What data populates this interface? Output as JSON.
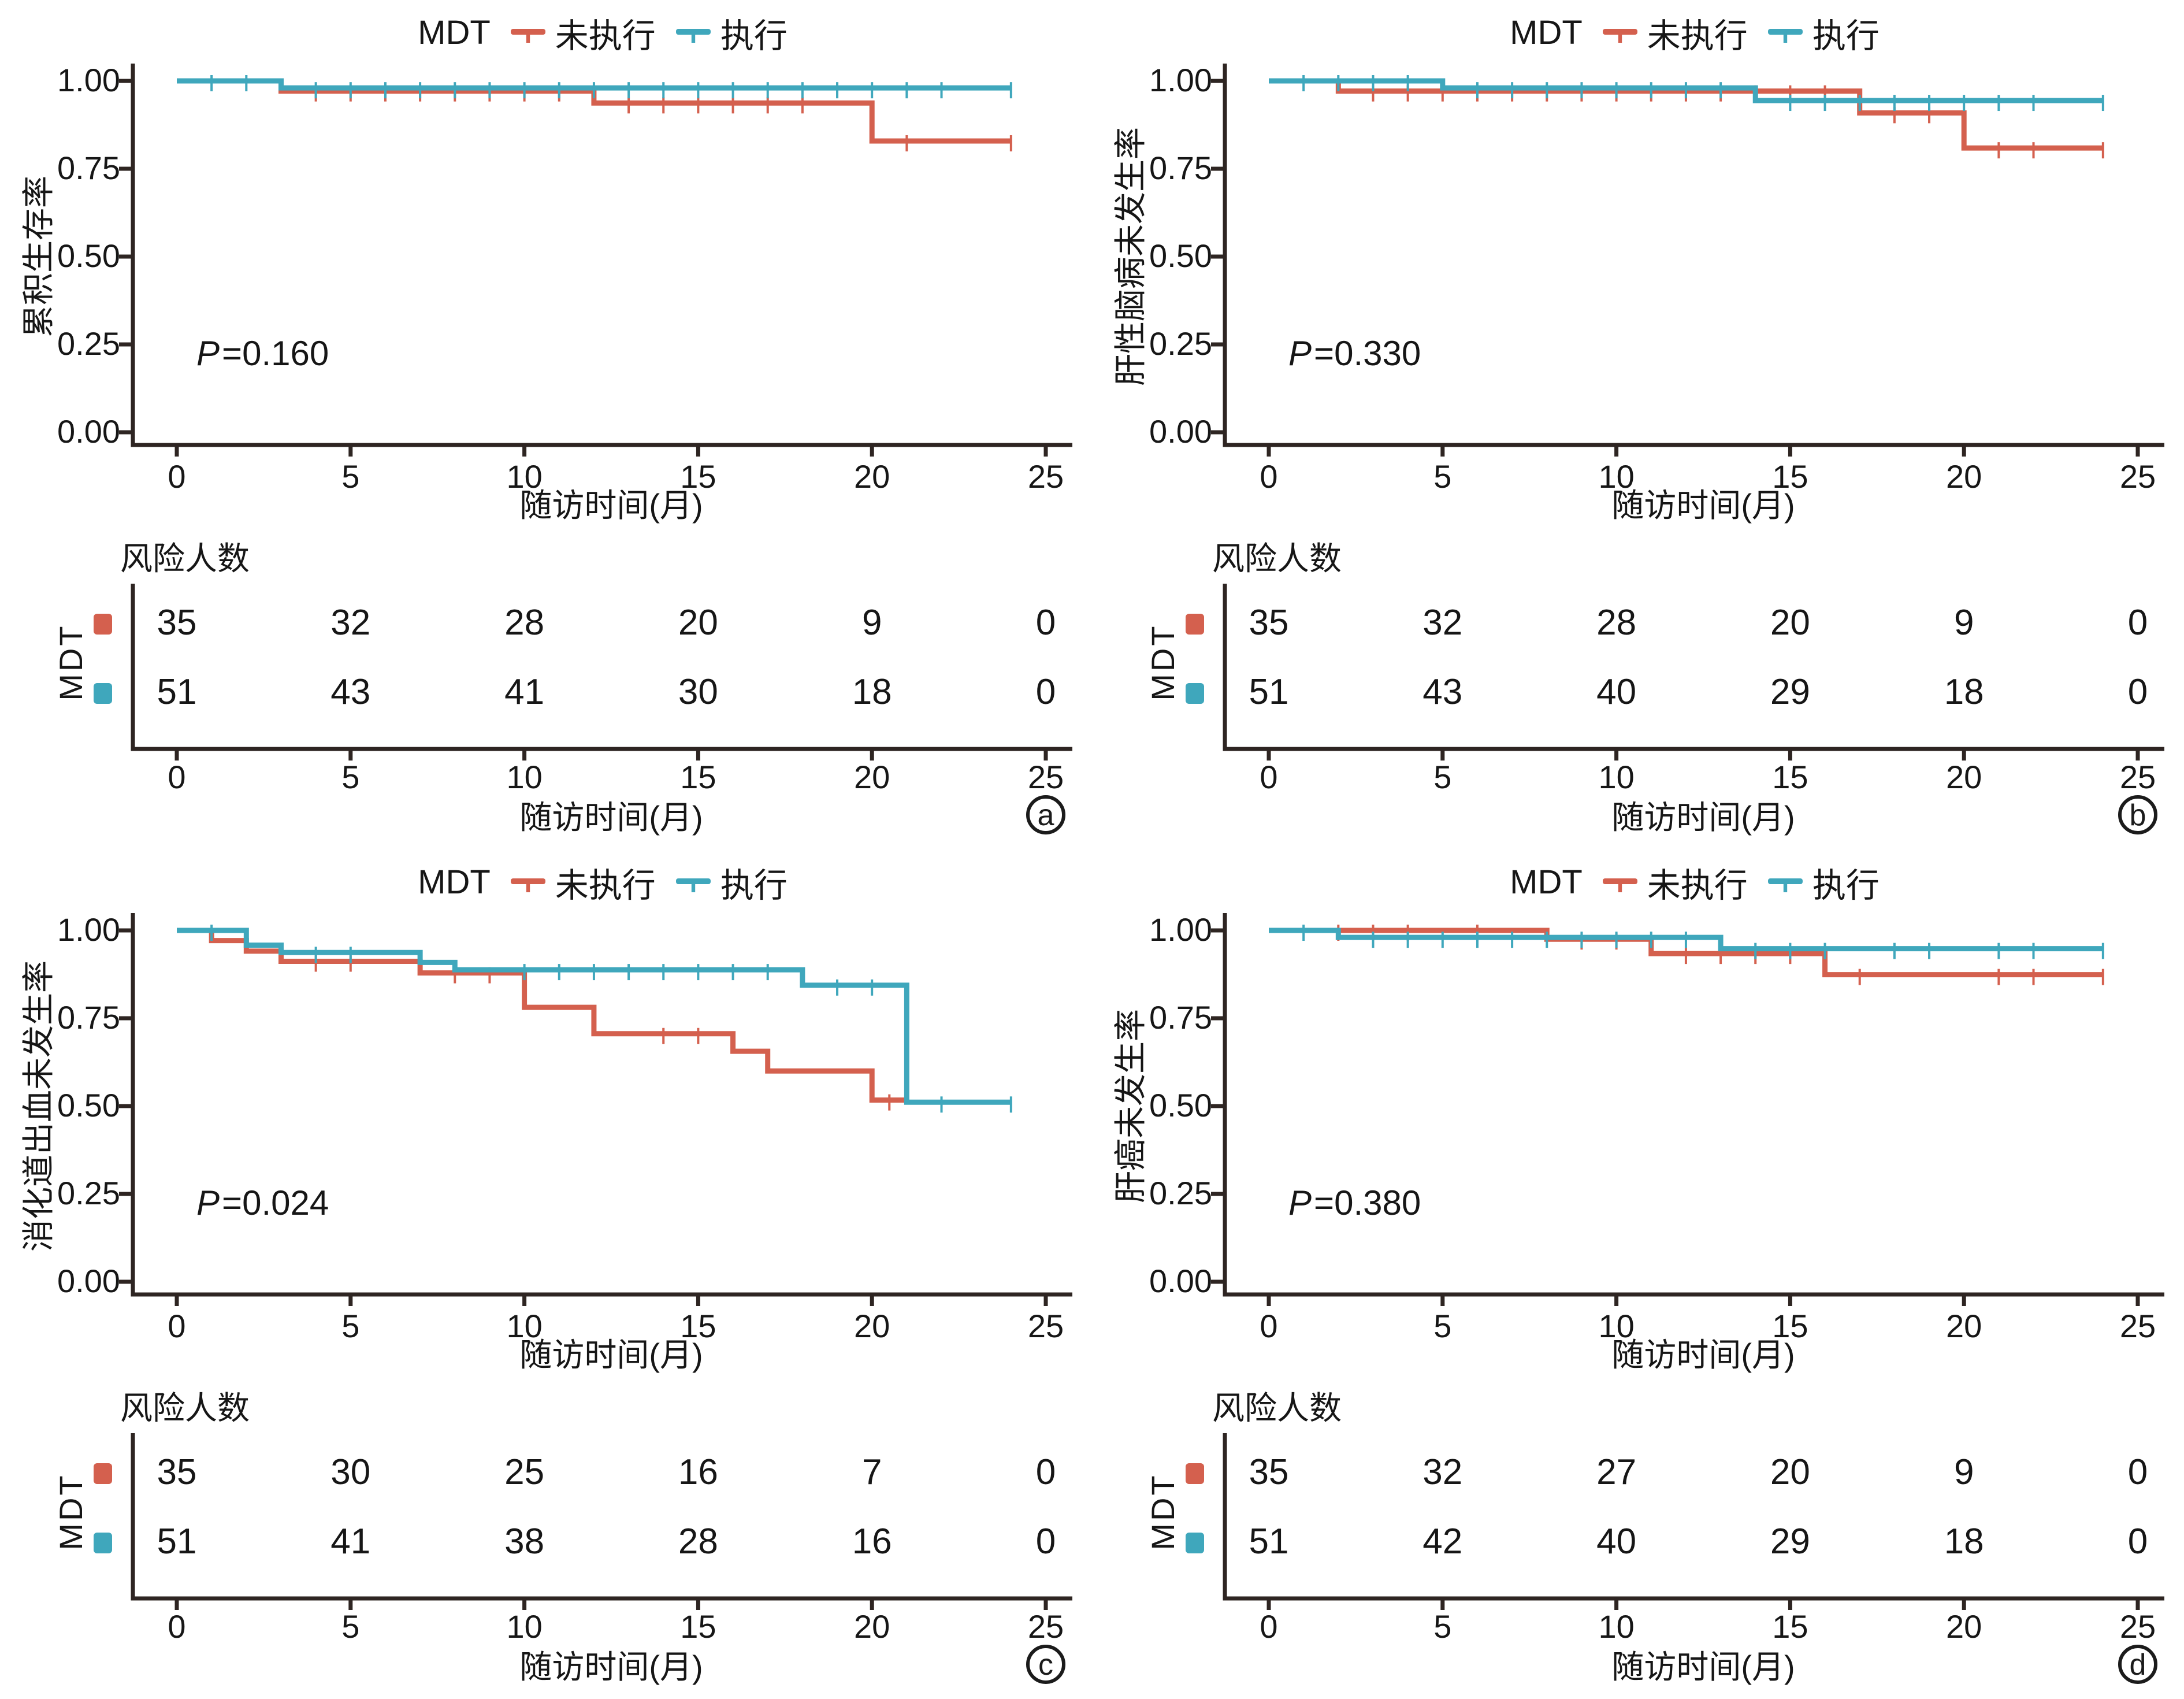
{
  "figure": {
    "legend": {
      "title": "MDT",
      "series": [
        {
          "label": "未执行",
          "color": "#d4604e"
        },
        {
          "label": "执行",
          "color": "#3fa7bc"
        }
      ]
    },
    "x_axis_title": "随访时间(月)",
    "x_tick_labels": [
      "0",
      "5",
      "10",
      "15",
      "20",
      "25"
    ],
    "y_tick_labels": [
      "1.00",
      "0.75",
      "0.50",
      "0.25",
      "0.00"
    ],
    "risk_table_header": "风险人数",
    "risk_group_label": "MDT",
    "colors": {
      "not_performed": "#d4604e",
      "performed": "#3fa7bc",
      "axis": "#2e2522",
      "text": "#161616"
    }
  },
  "chart_data": [
    {
      "id": "a",
      "type": "line",
      "subtype": "kaplan-meier-step",
      "caption": "a",
      "ylabel": "累积生存率",
      "xlabel": "随访时间(月)",
      "p_italic": "P",
      "p_text": "=0.160",
      "xlim": [
        0,
        25
      ],
      "ylim": [
        0,
        1
      ],
      "x_ticks": [
        0,
        5,
        10,
        15,
        20,
        25
      ],
      "y_ticks": [
        1.0,
        0.75,
        0.5,
        0.25,
        0.0
      ],
      "series": [
        {
          "name": "未执行",
          "color": "#d4604e",
          "steps": [
            [
              0,
              1.0
            ],
            [
              3,
              0.971
            ],
            [
              12,
              0.937
            ],
            [
              20,
              0.829
            ],
            [
              24,
              0.829
            ]
          ],
          "censors": [
            [
              4,
              0.971
            ],
            [
              5,
              0.971
            ],
            [
              6,
              0.971
            ],
            [
              7,
              0.971
            ],
            [
              8,
              0.971
            ],
            [
              9,
              0.971
            ],
            [
              10,
              0.971
            ],
            [
              11,
              0.971
            ],
            [
              13,
              0.937
            ],
            [
              14,
              0.937
            ],
            [
              15,
              0.937
            ],
            [
              16,
              0.937
            ],
            [
              17,
              0.937
            ],
            [
              18,
              0.937
            ],
            [
              21,
              0.829
            ],
            [
              24,
              0.829
            ]
          ]
        },
        {
          "name": "执行",
          "color": "#3fa7bc",
          "steps": [
            [
              0,
              1.0
            ],
            [
              3,
              0.98
            ],
            [
              24,
              0.98
            ]
          ],
          "censors": [
            [
              1,
              1.0
            ],
            [
              2,
              1.0
            ],
            [
              4,
              0.98
            ],
            [
              5,
              0.98
            ],
            [
              6,
              0.98
            ],
            [
              7,
              0.98
            ],
            [
              8,
              0.98
            ],
            [
              9,
              0.98
            ],
            [
              10,
              0.98
            ],
            [
              11,
              0.98
            ],
            [
              12,
              0.98
            ],
            [
              13,
              0.98
            ],
            [
              14,
              0.98
            ],
            [
              15,
              0.98
            ],
            [
              16,
              0.98
            ],
            [
              17,
              0.98
            ],
            [
              18,
              0.98
            ],
            [
              19,
              0.98
            ],
            [
              20,
              0.98
            ],
            [
              21,
              0.98
            ],
            [
              22,
              0.98
            ],
            [
              24,
              0.98
            ]
          ]
        }
      ],
      "risk_table": {
        "header": "风险人数",
        "group": "MDT",
        "x": [
          0,
          5,
          10,
          15,
          20,
          25
        ],
        "rows": [
          {
            "name": "未执行",
            "color": "#d4604e",
            "counts": [
              35,
              32,
              28,
              20,
              9,
              0
            ]
          },
          {
            "name": "执行",
            "color": "#3fa7bc",
            "counts": [
              51,
              43,
              41,
              30,
              18,
              0
            ]
          }
        ]
      }
    },
    {
      "id": "b",
      "type": "line",
      "subtype": "kaplan-meier-step",
      "caption": "b",
      "ylabel": "肝性脑病未发生率",
      "xlabel": "随访时间(月)",
      "p_italic": "P",
      "p_text": "=0.330",
      "xlim": [
        0,
        25
      ],
      "ylim": [
        0,
        1
      ],
      "x_ticks": [
        0,
        5,
        10,
        15,
        20,
        25
      ],
      "y_ticks": [
        1.0,
        0.75,
        0.5,
        0.25,
        0.0
      ],
      "series": [
        {
          "name": "未执行",
          "color": "#d4604e",
          "steps": [
            [
              0,
              1.0
            ],
            [
              2,
              0.971
            ],
            [
              17,
              0.909
            ],
            [
              20,
              0.809
            ],
            [
              24,
              0.809
            ]
          ],
          "censors": [
            [
              3,
              0.971
            ],
            [
              4,
              0.971
            ],
            [
              5,
              0.971
            ],
            [
              6,
              0.971
            ],
            [
              7,
              0.971
            ],
            [
              8,
              0.971
            ],
            [
              9,
              0.971
            ],
            [
              10,
              0.971
            ],
            [
              11,
              0.971
            ],
            [
              12,
              0.971
            ],
            [
              13,
              0.971
            ],
            [
              14,
              0.971
            ],
            [
              15,
              0.971
            ],
            [
              16,
              0.971
            ],
            [
              18,
              0.909
            ],
            [
              19,
              0.909
            ],
            [
              21,
              0.809
            ],
            [
              22,
              0.809
            ],
            [
              24,
              0.809
            ]
          ]
        },
        {
          "name": "执行",
          "color": "#3fa7bc",
          "steps": [
            [
              0,
              1.0
            ],
            [
              5,
              0.98
            ],
            [
              14,
              0.944
            ],
            [
              24,
              0.944
            ]
          ],
          "censors": [
            [
              1,
              1.0
            ],
            [
              2,
              1.0
            ],
            [
              3,
              1.0
            ],
            [
              4,
              1.0
            ],
            [
              6,
              0.98
            ],
            [
              7,
              0.98
            ],
            [
              8,
              0.98
            ],
            [
              9,
              0.98
            ],
            [
              10,
              0.98
            ],
            [
              11,
              0.98
            ],
            [
              12,
              0.98
            ],
            [
              13,
              0.98
            ],
            [
              15,
              0.944
            ],
            [
              16,
              0.944
            ],
            [
              17,
              0.944
            ],
            [
              18,
              0.944
            ],
            [
              19,
              0.944
            ],
            [
              20,
              0.944
            ],
            [
              21,
              0.944
            ],
            [
              22,
              0.944
            ],
            [
              24,
              0.944
            ]
          ]
        }
      ],
      "risk_table": {
        "header": "风险人数",
        "group": "MDT",
        "x": [
          0,
          5,
          10,
          15,
          20,
          25
        ],
        "rows": [
          {
            "name": "未执行",
            "color": "#d4604e",
            "counts": [
              35,
              32,
              28,
              20,
              9,
              0
            ]
          },
          {
            "name": "执行",
            "color": "#3fa7bc",
            "counts": [
              51,
              43,
              40,
              29,
              18,
              0
            ]
          }
        ]
      }
    },
    {
      "id": "c",
      "type": "line",
      "subtype": "kaplan-meier-step",
      "caption": "c",
      "ylabel": "消化道出血未发生率",
      "xlabel": "随访时间(月)",
      "p_italic": "P",
      "p_text": "=0.024",
      "xlim": [
        0,
        25
      ],
      "ylim": [
        0,
        1
      ],
      "x_ticks": [
        0,
        5,
        10,
        15,
        20,
        25
      ],
      "y_ticks": [
        1.0,
        0.75,
        0.5,
        0.25,
        0.0
      ],
      "series": [
        {
          "name": "未执行",
          "color": "#d4604e",
          "steps": [
            [
              0,
              1.0
            ],
            [
              1,
              0.971
            ],
            [
              2,
              0.941
            ],
            [
              3,
              0.912
            ],
            [
              7,
              0.879
            ],
            [
              10,
              0.781
            ],
            [
              12,
              0.706
            ],
            [
              16,
              0.656
            ],
            [
              17,
              0.6
            ],
            [
              20,
              0.517
            ],
            [
              21,
              0.517
            ]
          ],
          "censors": [
            [
              4,
              0.912
            ],
            [
              5,
              0.912
            ],
            [
              8,
              0.879
            ],
            [
              9,
              0.879
            ],
            [
              14,
              0.706
            ],
            [
              15,
              0.706
            ],
            [
              20.5,
              0.517
            ]
          ]
        },
        {
          "name": "执行",
          "color": "#3fa7bc",
          "steps": [
            [
              0,
              1.0
            ],
            [
              2,
              0.958
            ],
            [
              3,
              0.937
            ],
            [
              7,
              0.909
            ],
            [
              8,
              0.888
            ],
            [
              18,
              0.844
            ],
            [
              21,
              0.511
            ],
            [
              24,
              0.511
            ]
          ],
          "censors": [
            [
              1,
              1.0
            ],
            [
              4,
              0.937
            ],
            [
              5,
              0.937
            ],
            [
              10,
              0.888
            ],
            [
              11,
              0.888
            ],
            [
              12,
              0.888
            ],
            [
              13,
              0.888
            ],
            [
              14,
              0.888
            ],
            [
              15,
              0.888
            ],
            [
              16,
              0.888
            ],
            [
              17,
              0.888
            ],
            [
              19,
              0.844
            ],
            [
              20,
              0.844
            ],
            [
              22,
              0.511
            ],
            [
              24,
              0.511
            ]
          ]
        }
      ],
      "risk_table": {
        "header": "风险人数",
        "group": "MDT",
        "x": [
          0,
          5,
          10,
          15,
          20,
          25
        ],
        "rows": [
          {
            "name": "未执行",
            "color": "#d4604e",
            "counts": [
              35,
              30,
              25,
              16,
              7,
              0
            ]
          },
          {
            "name": "执行",
            "color": "#3fa7bc",
            "counts": [
              51,
              41,
              38,
              28,
              16,
              0
            ]
          }
        ]
      }
    },
    {
      "id": "d",
      "type": "line",
      "subtype": "kaplan-meier-step",
      "caption": "d",
      "ylabel": "肝癌未发生率",
      "xlabel": "随访时间(月)",
      "p_italic": "P",
      "p_text": "=0.380",
      "xlim": [
        0,
        25
      ],
      "ylim": [
        0,
        1
      ],
      "x_ticks": [
        0,
        5,
        10,
        15,
        20,
        25
      ],
      "y_ticks": [
        1.0,
        0.75,
        0.5,
        0.25,
        0.0
      ],
      "series": [
        {
          "name": "未执行",
          "color": "#d4604e",
          "steps": [
            [
              0,
              1.0
            ],
            [
              8,
              0.975
            ],
            [
              11,
              0.934
            ],
            [
              16,
              0.874
            ],
            [
              24,
              0.874
            ]
          ],
          "censors": [
            [
              2,
              1.0
            ],
            [
              3,
              1.0
            ],
            [
              4,
              1.0
            ],
            [
              6,
              1.0
            ],
            [
              9,
              0.975
            ],
            [
              10,
              0.975
            ],
            [
              12,
              0.934
            ],
            [
              13,
              0.934
            ],
            [
              14,
              0.934
            ],
            [
              15,
              0.934
            ],
            [
              17,
              0.874
            ],
            [
              21,
              0.874
            ],
            [
              22,
              0.874
            ],
            [
              24,
              0.874
            ]
          ]
        },
        {
          "name": "执行",
          "color": "#3fa7bc",
          "steps": [
            [
              0,
              1.0
            ],
            [
              2,
              0.98
            ],
            [
              13,
              0.948
            ],
            [
              24,
              0.948
            ]
          ],
          "censors": [
            [
              1,
              1.0
            ],
            [
              3,
              0.98
            ],
            [
              4,
              0.98
            ],
            [
              5,
              0.98
            ],
            [
              6,
              0.98
            ],
            [
              7,
              0.98
            ],
            [
              8,
              0.98
            ],
            [
              9,
              0.98
            ],
            [
              10,
              0.98
            ],
            [
              11,
              0.98
            ],
            [
              12,
              0.98
            ],
            [
              14,
              0.948
            ],
            [
              15,
              0.948
            ],
            [
              16,
              0.948
            ],
            [
              18,
              0.948
            ],
            [
              19,
              0.948
            ],
            [
              21,
              0.948
            ],
            [
              22,
              0.948
            ],
            [
              24,
              0.948
            ]
          ]
        }
      ],
      "risk_table": {
        "header": "风险人数",
        "group": "MDT",
        "x": [
          0,
          5,
          10,
          15,
          20,
          25
        ],
        "rows": [
          {
            "name": "未执行",
            "color": "#d4604e",
            "counts": [
              35,
              32,
              27,
              20,
              9,
              0
            ]
          },
          {
            "name": "执行",
            "color": "#3fa7bc",
            "counts": [
              51,
              42,
              40,
              29,
              18,
              0
            ]
          }
        ]
      }
    }
  ]
}
